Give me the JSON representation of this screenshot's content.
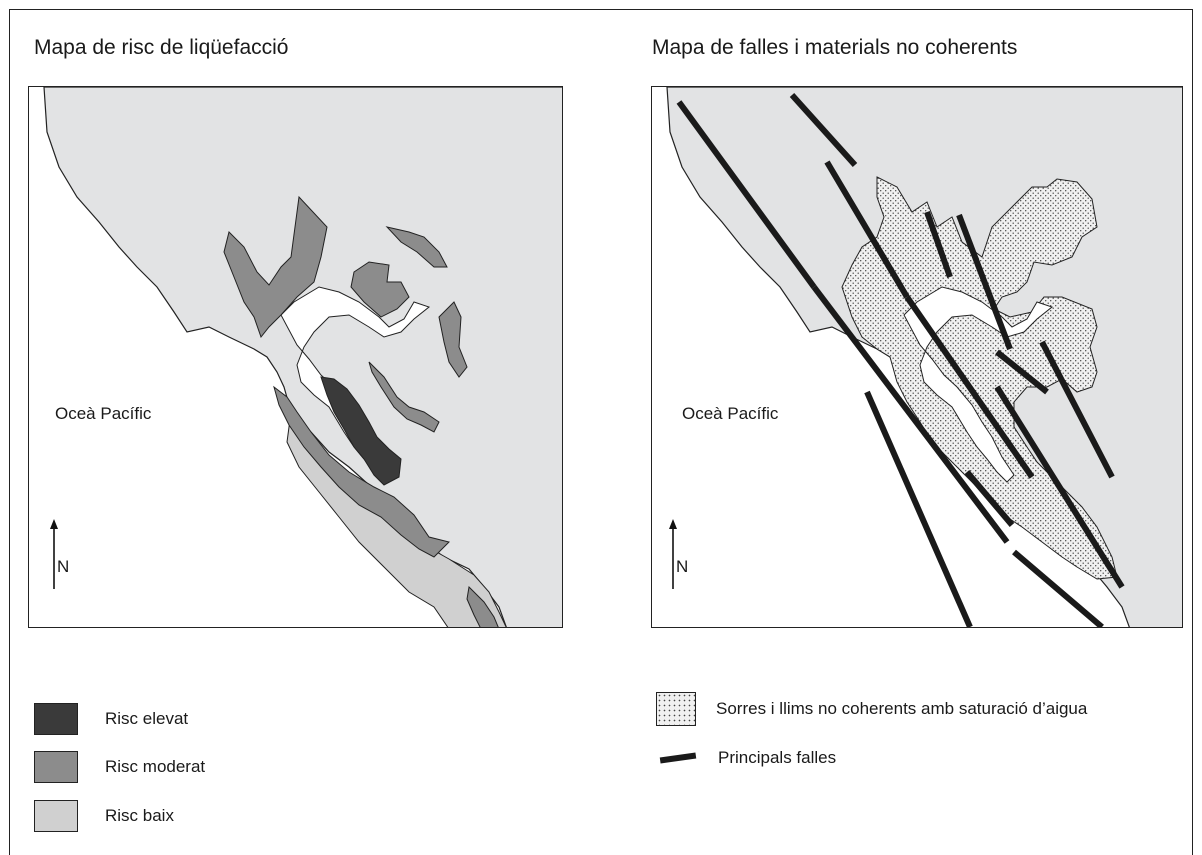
{
  "left_map": {
    "title": "Mapa de risc de liqüefacció",
    "ocean_label": "Oceà Pacífic",
    "north_label": "N"
  },
  "right_map": {
    "title": "Mapa de falles i materials no coherents",
    "ocean_label": "Oceà Pacífic",
    "north_label": "N"
  },
  "legend_left": [
    {
      "label": "Risc elevat",
      "color": "#3a3a3a"
    },
    {
      "label": "Risc moderat",
      "color": "#8c8c8c"
    },
    {
      "label": "Risc baix",
      "color": "#d0d0d0"
    }
  ],
  "legend_right": [
    {
      "label": "Sorres i llims no coherents amb saturació d’aigua",
      "pattern": "stippled"
    },
    {
      "label": "Principals falles",
      "symbol": "thick-line"
    }
  ],
  "colors": {
    "land_light": "#e4e5e6",
    "risk_low": "#d0d0d0",
    "risk_moderate": "#8c8c8c",
    "risk_high": "#3a3a3a",
    "water": "#ffffff",
    "fault": "#1a1a1a"
  }
}
